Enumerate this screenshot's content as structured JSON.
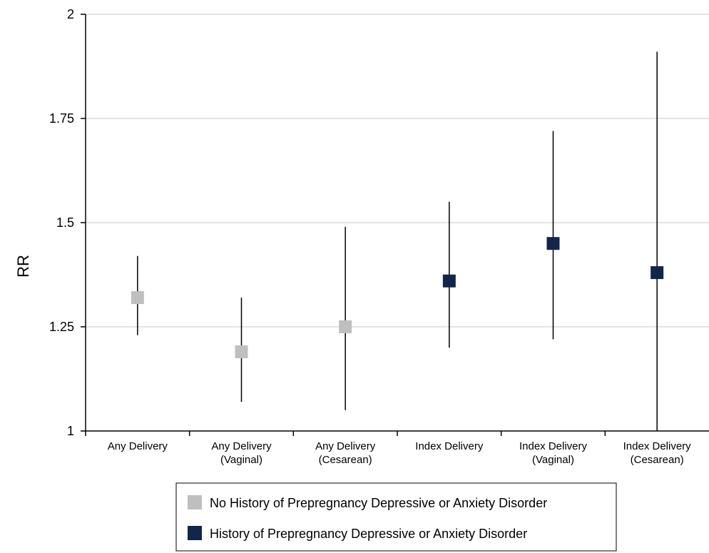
{
  "chart_data": {
    "type": "scatter",
    "ylabel": "RR",
    "xlabel": "",
    "ylim": [
      1,
      2
    ],
    "yticks": [
      "1",
      "1.25",
      "1.5",
      "1.75",
      "2"
    ],
    "grid": true,
    "legend_position": "bottom",
    "categories": [
      [
        "Any Delivery"
      ],
      [
        "Any Delivery",
        "(Vaginal)"
      ],
      [
        "Any Delivery",
        "(Cesarean)"
      ],
      [
        "Index Delivery"
      ],
      [
        "Index Delivery",
        "(Vaginal)"
      ],
      [
        "Index Delivery",
        "(Cesarean)"
      ]
    ],
    "series": [
      {
        "name": "No History of Prepregnancy Depressive or Anxiety Disorder",
        "color": "#bfbfbf",
        "points": [
          {
            "category": 0,
            "value": 1.32,
            "lower": 1.23,
            "upper": 1.42
          },
          {
            "category": 1,
            "value": 1.19,
            "lower": 1.07,
            "upper": 1.32
          },
          {
            "category": 2,
            "value": 1.25,
            "lower": 1.05,
            "upper": 1.49
          }
        ]
      },
      {
        "name": "History of Prepregnancy Depressive or Anxiety Disorder",
        "color": "#12264a",
        "points": [
          {
            "category": 3,
            "value": 1.36,
            "lower": 1.2,
            "upper": 1.55
          },
          {
            "category": 4,
            "value": 1.45,
            "lower": 1.22,
            "upper": 1.72
          },
          {
            "category": 5,
            "value": 1.38,
            "lower": 1.0,
            "upper": 1.91
          }
        ]
      }
    ]
  }
}
